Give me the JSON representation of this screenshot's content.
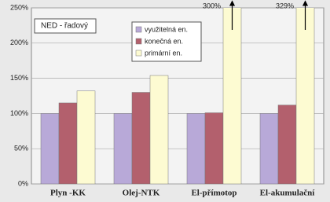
{
  "chart_data": {
    "type": "bar",
    "annotation": "NED - řadový",
    "categories": [
      "Plyn -KK",
      "Olej-NTK",
      "El-přímotop",
      "El-akumulační"
    ],
    "series": [
      {
        "name": "využitelná en.",
        "color": "#b8a9d8",
        "values": [
          100,
          100,
          100,
          100
        ]
      },
      {
        "name": "konečná en.",
        "color": "#b3606d",
        "values": [
          115,
          130,
          101,
          112
        ]
      },
      {
        "name": "primární en.",
        "color": "#fdfbd2",
        "values": [
          132,
          154,
          300,
          329
        ],
        "value_labels": [
          null,
          null,
          "300%",
          "329%"
        ]
      }
    ],
    "ylim": [
      0,
      250
    ],
    "yticks": [
      {
        "value": 0,
        "label": "0%"
      },
      {
        "value": 50,
        "label": "50%"
      },
      {
        "value": 100,
        "label": "100%"
      },
      {
        "value": 150,
        "label": "150%"
      },
      {
        "value": 200,
        "label": "200%"
      },
      {
        "value": 250,
        "label": "250%"
      }
    ],
    "grid": true,
    "legend": "top-center"
  }
}
